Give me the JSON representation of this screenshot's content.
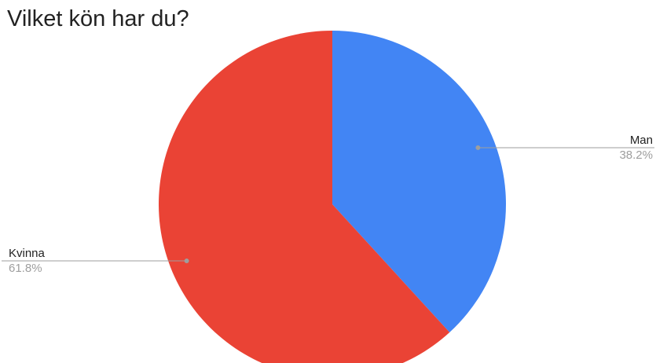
{
  "chart_data": {
    "type": "pie",
    "title": "Vilket kön har du?",
    "slices": [
      {
        "label": "Man",
        "value": 38.2,
        "value_label": "38.2%",
        "color": "#4285f4",
        "label_side": "right"
      },
      {
        "label": "Kvinna",
        "value": 61.8,
        "value_label": "61.8%",
        "color": "#ea4335",
        "label_side": "left"
      }
    ],
    "start_angle": "12 o'clock",
    "direction": "clockwise",
    "legend": "none",
    "label_style": "callout lines with name and percentage"
  },
  "colors": {
    "title_text": "#222222",
    "label_text": "#222222",
    "percent_text": "#9e9e9e",
    "leader_line": "#9e9e9e",
    "background": "#ffffff"
  }
}
